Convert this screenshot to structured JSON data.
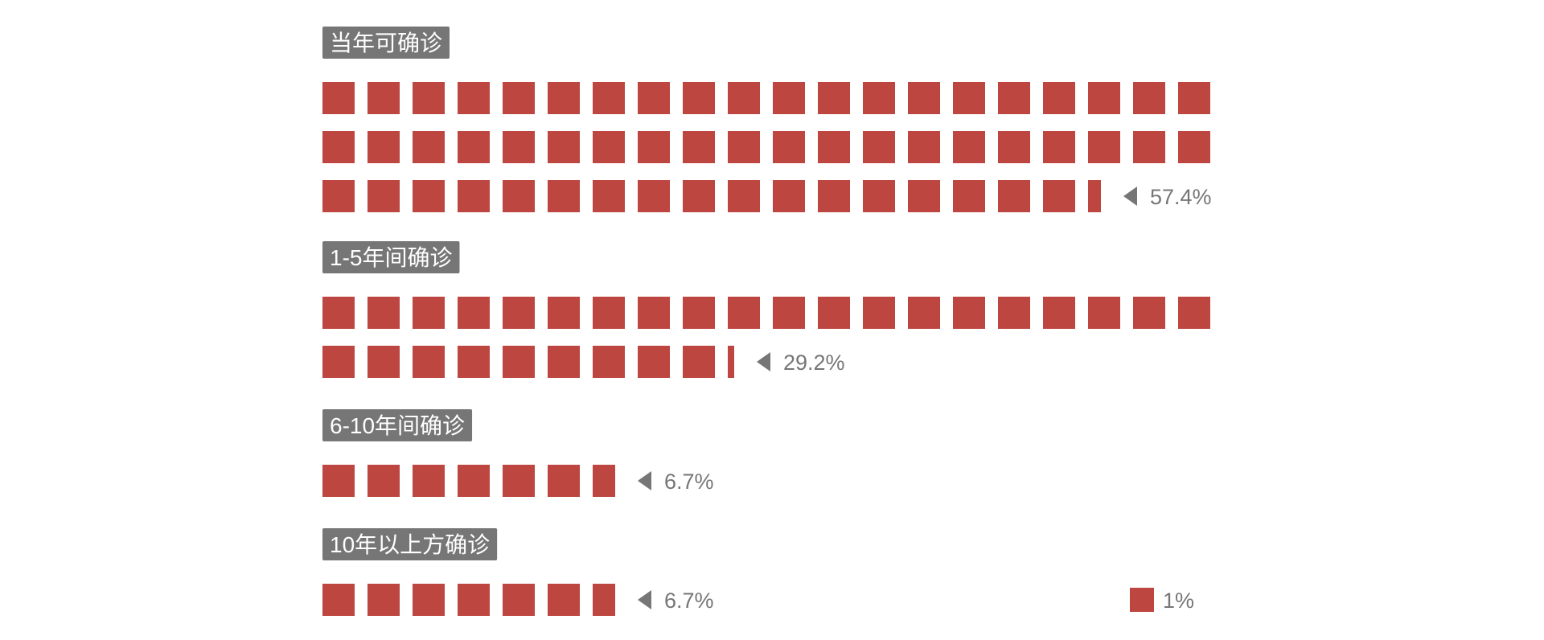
{
  "chart_data": {
    "type": "waffle",
    "unit_label": "1%",
    "colors": {
      "square": "#BD4640",
      "label_bg": "#767676",
      "label_text": "#FFFFFF",
      "value_text": "#767676"
    },
    "categories": [
      {
        "name": "当年可确诊",
        "value": 57.4,
        "value_label": "57.4%"
      },
      {
        "name": "1-5年间确诊",
        "value": 29.2,
        "value_label": "29.2%"
      },
      {
        "name": "6-10年间确诊",
        "value": 6.7,
        "value_label": "6.7%"
      },
      {
        "name": "10年以上方确诊",
        "value": 6.7,
        "value_label": "6.7%"
      }
    ]
  }
}
